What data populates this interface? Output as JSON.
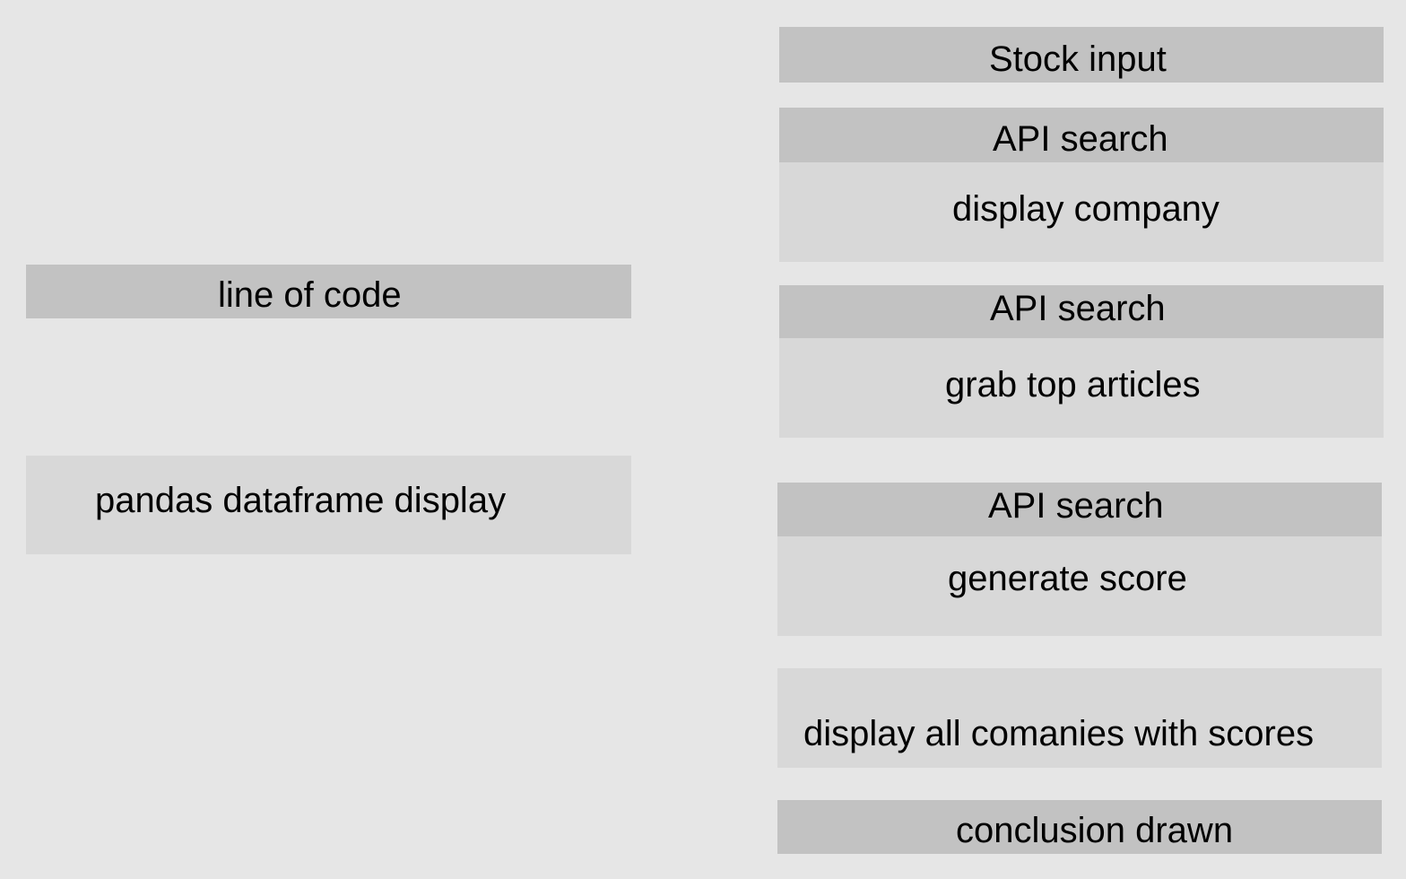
{
  "left_column": {
    "code_label": "line of code",
    "dataframe_label": "pandas dataframe display"
  },
  "right_column": {
    "stock_input": "Stock input",
    "steps": [
      {
        "header": "API search",
        "body": "display company"
      },
      {
        "header": "API search",
        "body": "grab top articles"
      },
      {
        "header": "API search",
        "body": "generate score"
      }
    ],
    "display_all": "display all comanies with scores",
    "conclusion": "conclusion drawn"
  },
  "colors": {
    "background": "#e6e6e6",
    "header_fill": "#c2c2c2",
    "body_fill": "#d8d8d8",
    "text": "#000000"
  }
}
